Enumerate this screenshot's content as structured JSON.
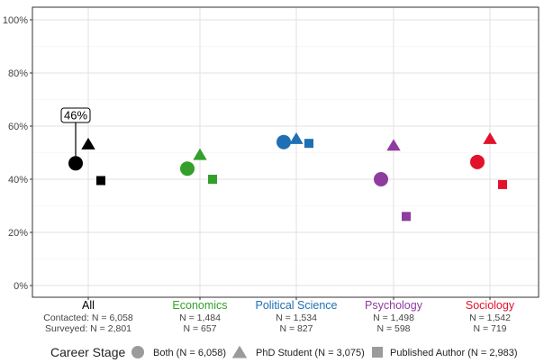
{
  "chart_data": {
    "type": "scatter",
    "title": "",
    "xlabel": "",
    "ylabel": "",
    "ylim": [
      0,
      100
    ],
    "yticks": [
      "0%",
      "20%",
      "40%",
      "60%",
      "80%",
      "100%"
    ],
    "grid": true,
    "categories": [
      {
        "name": "All",
        "color": "#000000",
        "sub": [
          "Contacted: N = 6,058",
          "Surveyed: N = 2,801"
        ]
      },
      {
        "name": "Economics",
        "color": "#33a02c",
        "sub": [
          "N = 1,484",
          "N = 657"
        ]
      },
      {
        "name": "Political Science",
        "color": "#1f6fb4",
        "sub": [
          "N = 1,534",
          "N = 827"
        ]
      },
      {
        "name": "Psychology",
        "color": "#8e3c9e",
        "sub": [
          "N = 1,498",
          "N = 598"
        ]
      },
      {
        "name": "Sociology",
        "color": "#e3122b",
        "sub": [
          "N = 1,542",
          "N = 719"
        ]
      }
    ],
    "series": [
      {
        "name": "Both",
        "shape": "circle",
        "values": [
          46,
          44,
          54,
          40,
          46.5
        ]
      },
      {
        "name": "PhD Student",
        "shape": "triangle",
        "values": [
          53,
          49,
          55,
          52.5,
          55
        ]
      },
      {
        "name": "Published Author",
        "shape": "square",
        "values": [
          39.5,
          40,
          53.5,
          26,
          38
        ]
      }
    ],
    "annotation": {
      "text": "46%",
      "category": "All",
      "value": 46
    },
    "legend": {
      "title": "Career Stage",
      "position": "bottom",
      "items": [
        {
          "label": "Both (N = 6,058)",
          "shape": "circle"
        },
        {
          "label": "PhD Student (N = 3,075)",
          "shape": "triangle"
        },
        {
          "label": "Published Author (N = 2,983)",
          "shape": "square"
        }
      ]
    }
  }
}
